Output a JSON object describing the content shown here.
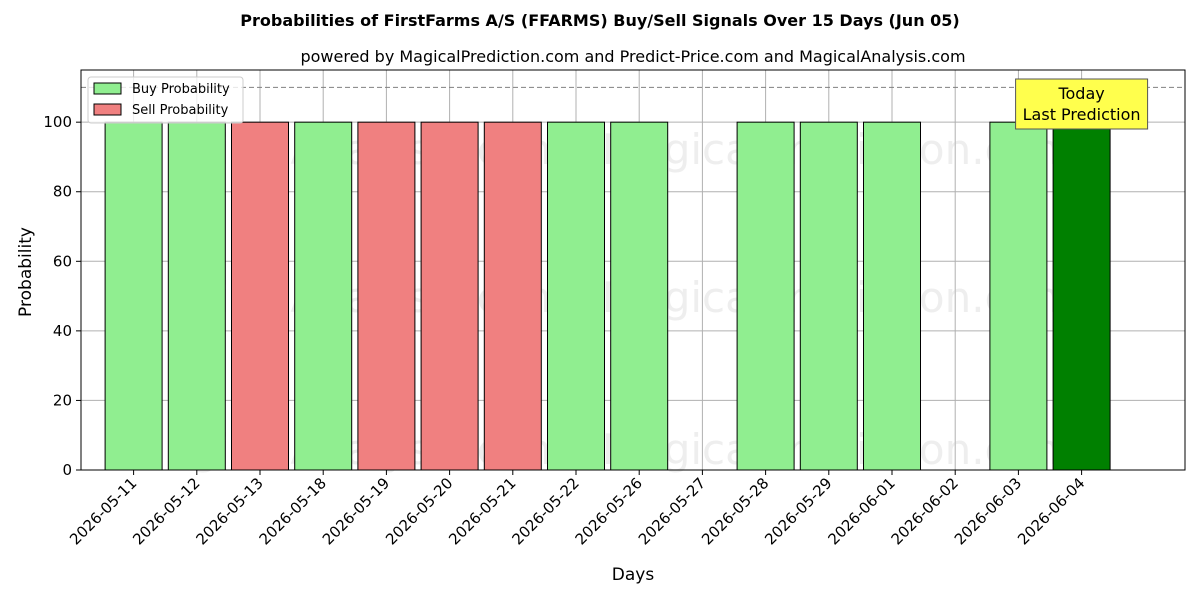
{
  "chart_data": {
    "type": "bar",
    "title": "Probabilities of FirstFarms A/S (FFARMS) Buy/Sell Signals Over 15 Days (Jun 05)",
    "subtitle": "powered by MagicalPrediction.com and Predict-Price.com and MagicalAnalysis.com",
    "xlabel": "Days",
    "ylabel": "Probability",
    "ylim": [
      0,
      115
    ],
    "yticks": [
      0,
      20,
      40,
      60,
      80,
      100
    ],
    "reference_line": 110,
    "grid": true,
    "legend_position": "top-left",
    "categories": [
      "2026-05-11",
      "2026-05-12",
      "2026-05-13",
      "2026-05-18",
      "2026-05-19",
      "2026-05-20",
      "2026-05-21",
      "2026-05-22",
      "2026-05-26",
      "2026-05-27",
      "2026-05-28",
      "2026-05-29",
      "2026-06-01",
      "2026-06-02",
      "2026-06-03",
      "2026-06-04"
    ],
    "series": [
      {
        "name": "Buy Probability",
        "color": "#90ee90",
        "values": [
          100,
          100,
          0,
          100,
          0,
          0,
          0,
          100,
          100,
          0,
          100,
          100,
          100,
          0,
          100,
          100
        ]
      },
      {
        "name": "Sell Probability",
        "color": "#f08080",
        "values": [
          0,
          0,
          100,
          0,
          100,
          100,
          100,
          0,
          0,
          0,
          0,
          0,
          0,
          0,
          0,
          0
        ]
      }
    ],
    "highlight": {
      "category": "2026-06-04",
      "color": "#008000"
    },
    "annotation": {
      "line1": "Today",
      "line2": "Last Prediction",
      "background": "#ffff4d"
    },
    "watermarks": [
      "MagicalAnalysis.com",
      "MagicalPrediction.com"
    ]
  }
}
